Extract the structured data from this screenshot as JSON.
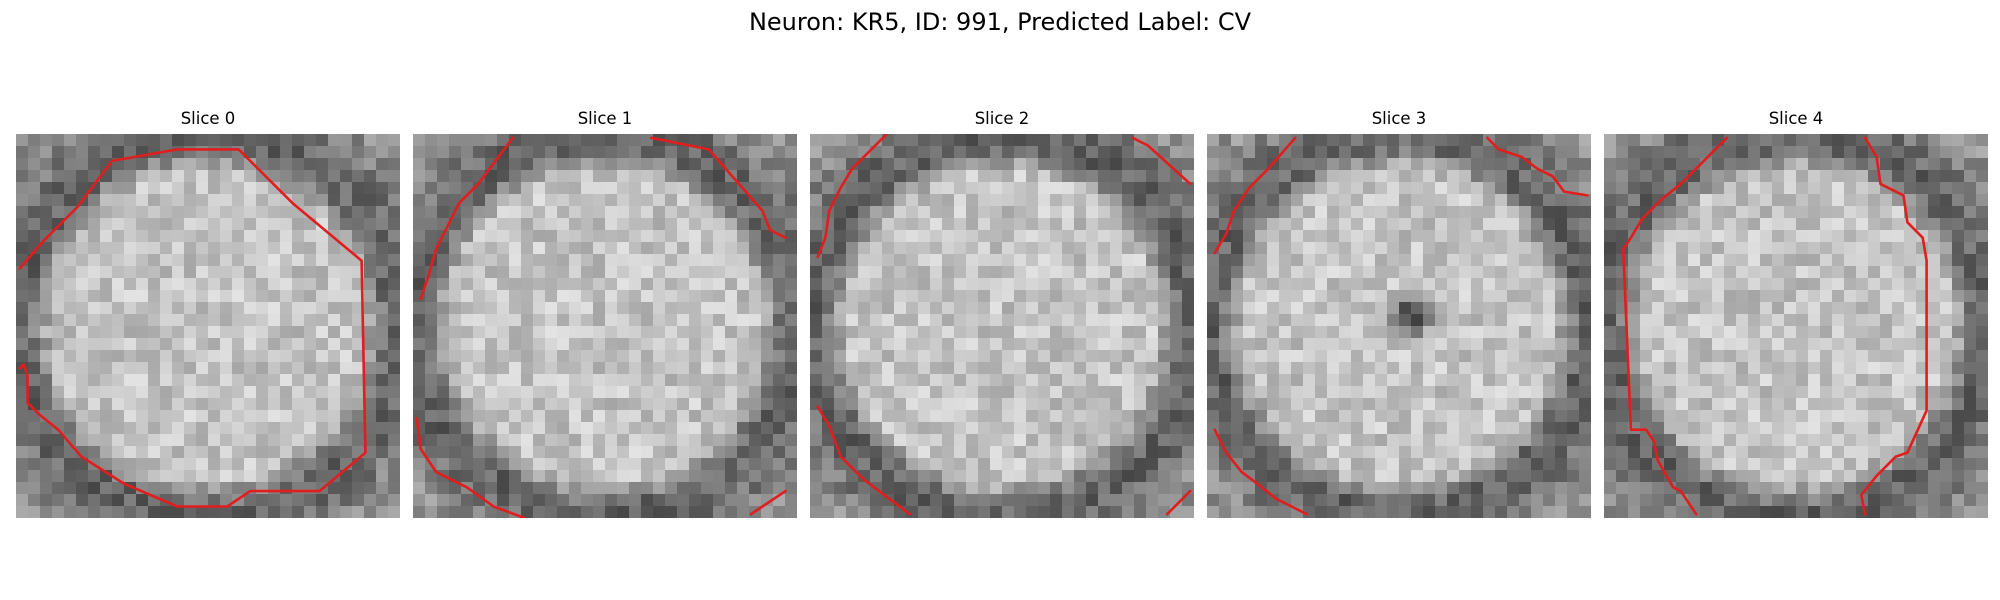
{
  "figure": {
    "title": "Neuron: KR5, ID: 991, Predicted Label: CV"
  },
  "slices": [
    {
      "title": "Slice 0",
      "lesion": null,
      "contours": [
        [
          [
            0.01,
            0.35
          ],
          [
            0.07,
            0.28
          ],
          [
            0.16,
            0.19
          ],
          [
            0.25,
            0.07
          ],
          [
            0.42,
            0.04
          ],
          [
            0.58,
            0.04
          ],
          [
            0.72,
            0.18
          ],
          [
            0.9,
            0.33
          ],
          [
            0.91,
            0.83
          ],
          [
            0.79,
            0.93
          ],
          [
            0.61,
            0.93
          ],
          [
            0.55,
            0.97
          ],
          [
            0.42,
            0.97
          ],
          [
            0.28,
            0.91
          ],
          [
            0.17,
            0.84
          ],
          [
            0.11,
            0.77
          ],
          [
            0.06,
            0.73
          ],
          [
            0.03,
            0.7
          ],
          [
            0.03,
            0.63
          ],
          [
            0.02,
            0.6
          ],
          [
            0.01,
            0.61
          ]
        ]
      ]
    },
    {
      "title": "Slice 1",
      "lesion": null,
      "contours": [
        [
          [
            0.02,
            0.43
          ],
          [
            0.04,
            0.37
          ],
          [
            0.06,
            0.3
          ],
          [
            0.09,
            0.24
          ],
          [
            0.12,
            0.18
          ],
          [
            0.17,
            0.13
          ],
          [
            0.26,
            0.01
          ]
        ],
        [
          [
            0.62,
            0.01
          ],
          [
            0.77,
            0.04
          ],
          [
            0.84,
            0.12
          ],
          [
            0.91,
            0.2
          ],
          [
            0.93,
            0.25
          ],
          [
            0.97,
            0.27
          ]
        ],
        [
          [
            0.01,
            0.74
          ],
          [
            0.02,
            0.82
          ],
          [
            0.06,
            0.88
          ],
          [
            0.14,
            0.92
          ],
          [
            0.21,
            0.97
          ],
          [
            0.29,
            1.0
          ]
        ],
        [
          [
            0.88,
            0.99
          ],
          [
            0.97,
            0.93
          ]
        ]
      ]
    },
    {
      "title": "Slice 2",
      "lesion": null,
      "contours": [
        [
          [
            0.02,
            0.32
          ],
          [
            0.04,
            0.27
          ],
          [
            0.05,
            0.2
          ],
          [
            0.08,
            0.14
          ],
          [
            0.11,
            0.09
          ],
          [
            0.2,
            0.0
          ]
        ],
        [
          [
            0.84,
            0.01
          ],
          [
            0.88,
            0.03
          ],
          [
            0.99,
            0.13
          ]
        ],
        [
          [
            0.02,
            0.71
          ],
          [
            0.05,
            0.76
          ],
          [
            0.08,
            0.84
          ],
          [
            0.14,
            0.9
          ],
          [
            0.22,
            0.96
          ],
          [
            0.26,
            0.99
          ]
        ],
        [
          [
            0.93,
            0.99
          ],
          [
            0.99,
            0.93
          ]
        ]
      ]
    },
    {
      "title": "Slice 3",
      "lesion": [
        0.53,
        0.47,
        0.085,
        0.08
      ],
      "contours": [
        [
          [
            0.02,
            0.31
          ],
          [
            0.05,
            0.26
          ],
          [
            0.07,
            0.2
          ],
          [
            0.11,
            0.14
          ],
          [
            0.16,
            0.09
          ],
          [
            0.23,
            0.01
          ]
        ],
        [
          [
            0.73,
            0.01
          ],
          [
            0.76,
            0.04
          ],
          [
            0.82,
            0.06
          ],
          [
            0.86,
            0.09
          ],
          [
            0.9,
            0.11
          ],
          [
            0.93,
            0.15
          ],
          [
            0.99,
            0.16
          ]
        ],
        [
          [
            0.02,
            0.77
          ],
          [
            0.05,
            0.83
          ],
          [
            0.09,
            0.88
          ],
          [
            0.13,
            0.91
          ],
          [
            0.18,
            0.95
          ],
          [
            0.24,
            0.98
          ],
          [
            0.26,
            0.99
          ]
        ]
      ]
    },
    {
      "title": "Slice 4",
      "lesion": null,
      "contours": [
        [
          [
            0.32,
            0.01
          ],
          [
            0.26,
            0.07
          ],
          [
            0.2,
            0.13
          ],
          [
            0.15,
            0.17
          ],
          [
            0.1,
            0.22
          ],
          [
            0.07,
            0.27
          ],
          [
            0.05,
            0.3
          ],
          [
            0.07,
            0.77
          ],
          [
            0.11,
            0.77
          ],
          [
            0.13,
            0.8
          ],
          [
            0.14,
            0.85
          ],
          [
            0.18,
            0.92
          ],
          [
            0.2,
            0.93
          ],
          [
            0.24,
            0.99
          ]
        ],
        [
          [
            0.68,
            0.01
          ],
          [
            0.71,
            0.06
          ],
          [
            0.72,
            0.13
          ],
          [
            0.78,
            0.16
          ],
          [
            0.79,
            0.23
          ],
          [
            0.83,
            0.27
          ],
          [
            0.84,
            0.33
          ],
          [
            0.84,
            0.72
          ],
          [
            0.79,
            0.83
          ],
          [
            0.76,
            0.84
          ],
          [
            0.71,
            0.89
          ],
          [
            0.67,
            0.94
          ],
          [
            0.68,
            0.99
          ]
        ]
      ]
    }
  ],
  "colors": {
    "contour": "#e11d1d"
  }
}
